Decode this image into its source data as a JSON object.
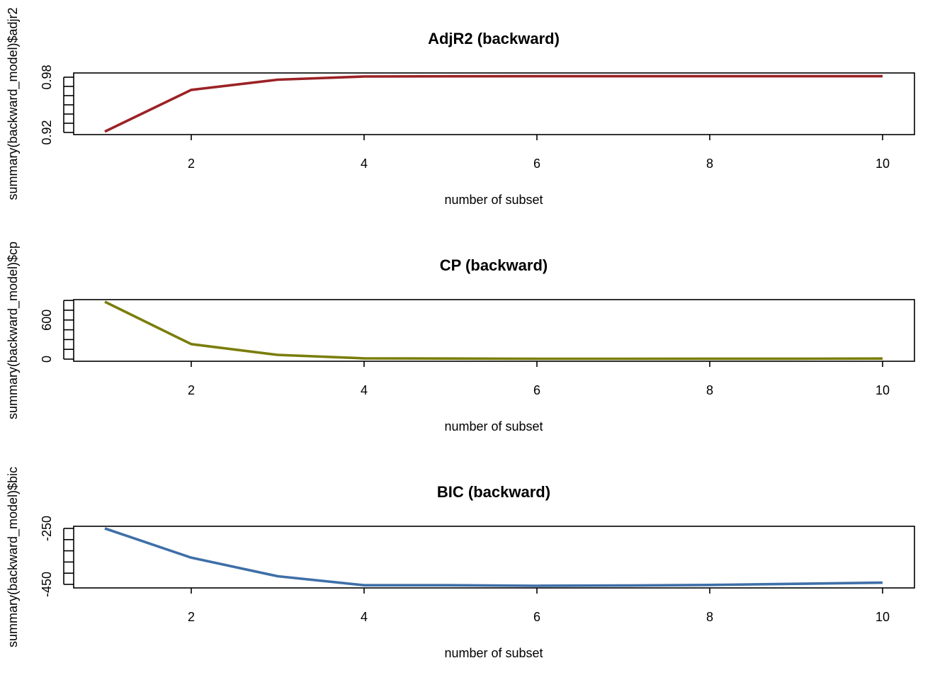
{
  "chart_data": [
    {
      "type": "line",
      "title": "AdjR2 (backward)",
      "xlabel": "number of subset",
      "ylabel": "summary(backward_model)$adjr2",
      "x": [
        1,
        2,
        3,
        4,
        5,
        6,
        7,
        8,
        9,
        10
      ],
      "x_ticks": [
        "2",
        "4",
        "6",
        "8",
        "10"
      ],
      "y_ticks": [
        "0.92",
        "0.98"
      ],
      "xlim": [
        1,
        10
      ],
      "ylim": [
        0.92,
        0.982
      ],
      "color": "#9B2226",
      "series": [
        {
          "values": [
            0.921,
            0.966,
            0.977,
            0.9805,
            0.9807,
            0.9808,
            0.9808,
            0.9808,
            0.9808,
            0.9808
          ]
        }
      ]
    },
    {
      "type": "line",
      "title": "CP (backward)",
      "xlabel": "number of subset",
      "ylabel": "summary(backward_model)$cp",
      "x": [
        1,
        2,
        3,
        4,
        5,
        6,
        7,
        8,
        9,
        10
      ],
      "x_ticks": [
        "2",
        "4",
        "6",
        "8",
        "10"
      ],
      "y_ticks": [
        "0",
        "600"
      ],
      "xlim": [
        1,
        10
      ],
      "ylim": [
        0,
        880
      ],
      "color": "#7A7D0A",
      "series": [
        {
          "values": [
            880,
            230,
            65,
            12,
            9,
            5,
            5,
            6,
            7,
            9
          ]
        }
      ]
    },
    {
      "type": "line",
      "title": "BIC (backward)",
      "xlabel": "number of subset",
      "ylabel": "summary(backward_model)$bic",
      "x": [
        1,
        2,
        3,
        4,
        5,
        6,
        7,
        8,
        9,
        10
      ],
      "x_ticks": [
        "2",
        "4",
        "6",
        "8",
        "10"
      ],
      "y_ticks": [
        "-250",
        "-450"
      ],
      "xlim": [
        1,
        10
      ],
      "ylim": [
        -458,
        -254
      ],
      "color": "#3E6FA8",
      "series": [
        {
          "values": [
            -254,
            -358,
            -424,
            -456,
            -456,
            -458,
            -457,
            -455,
            -451,
            -447
          ]
        }
      ]
    }
  ]
}
